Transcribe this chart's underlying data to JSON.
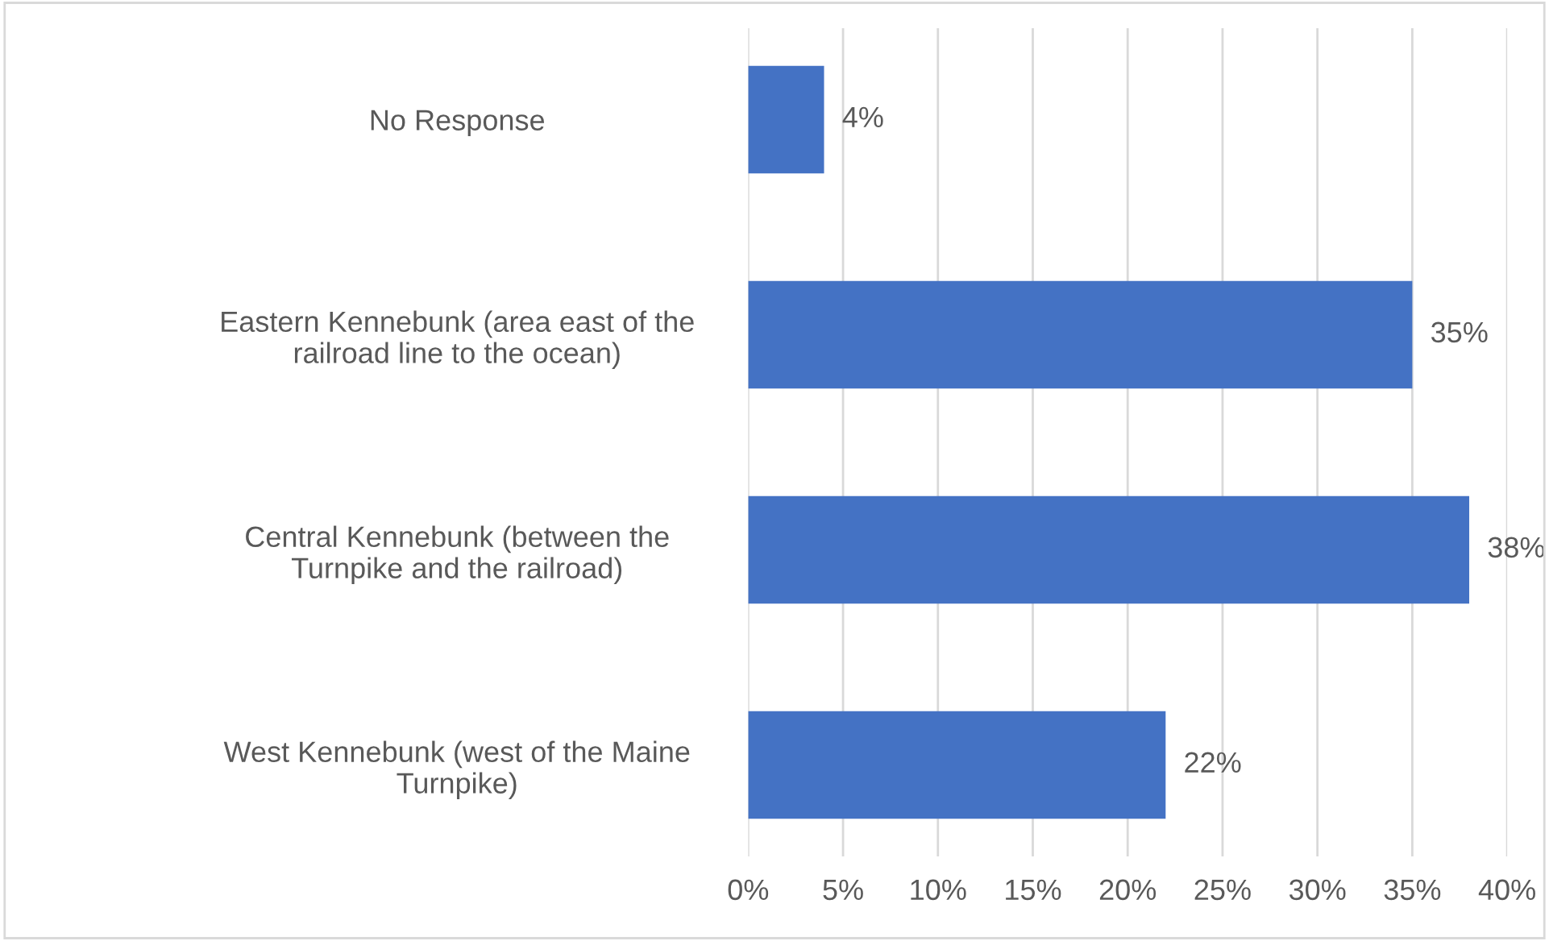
{
  "chart_data": {
    "type": "bar",
    "orientation": "horizontal",
    "categories": [
      "No Response",
      "Eastern Kennebunk (area east of the railroad line to the ocean)",
      "Central Kennebunk (between the Turnpike and the railroad)",
      "West Kennebunk (west of the Maine Turnpike)"
    ],
    "values": [
      4,
      35,
      38,
      22
    ],
    "color": "#4472c4",
    "value_labels": [
      "4%",
      "35%",
      "38%",
      "22%"
    ],
    "xlim": [
      0,
      40
    ],
    "xticks": [
      {
        "value": 0,
        "label": "0%"
      },
      {
        "value": 5,
        "label": "5%"
      },
      {
        "value": 10,
        "label": "10%"
      },
      {
        "value": 15,
        "label": "15%"
      },
      {
        "value": 20,
        "label": "20%"
      },
      {
        "value": 25,
        "label": "25%"
      },
      {
        "value": 30,
        "label": "30%"
      },
      {
        "value": 35,
        "label": "35%"
      },
      {
        "value": 40,
        "label": "40%"
      }
    ],
    "grid": "x"
  }
}
